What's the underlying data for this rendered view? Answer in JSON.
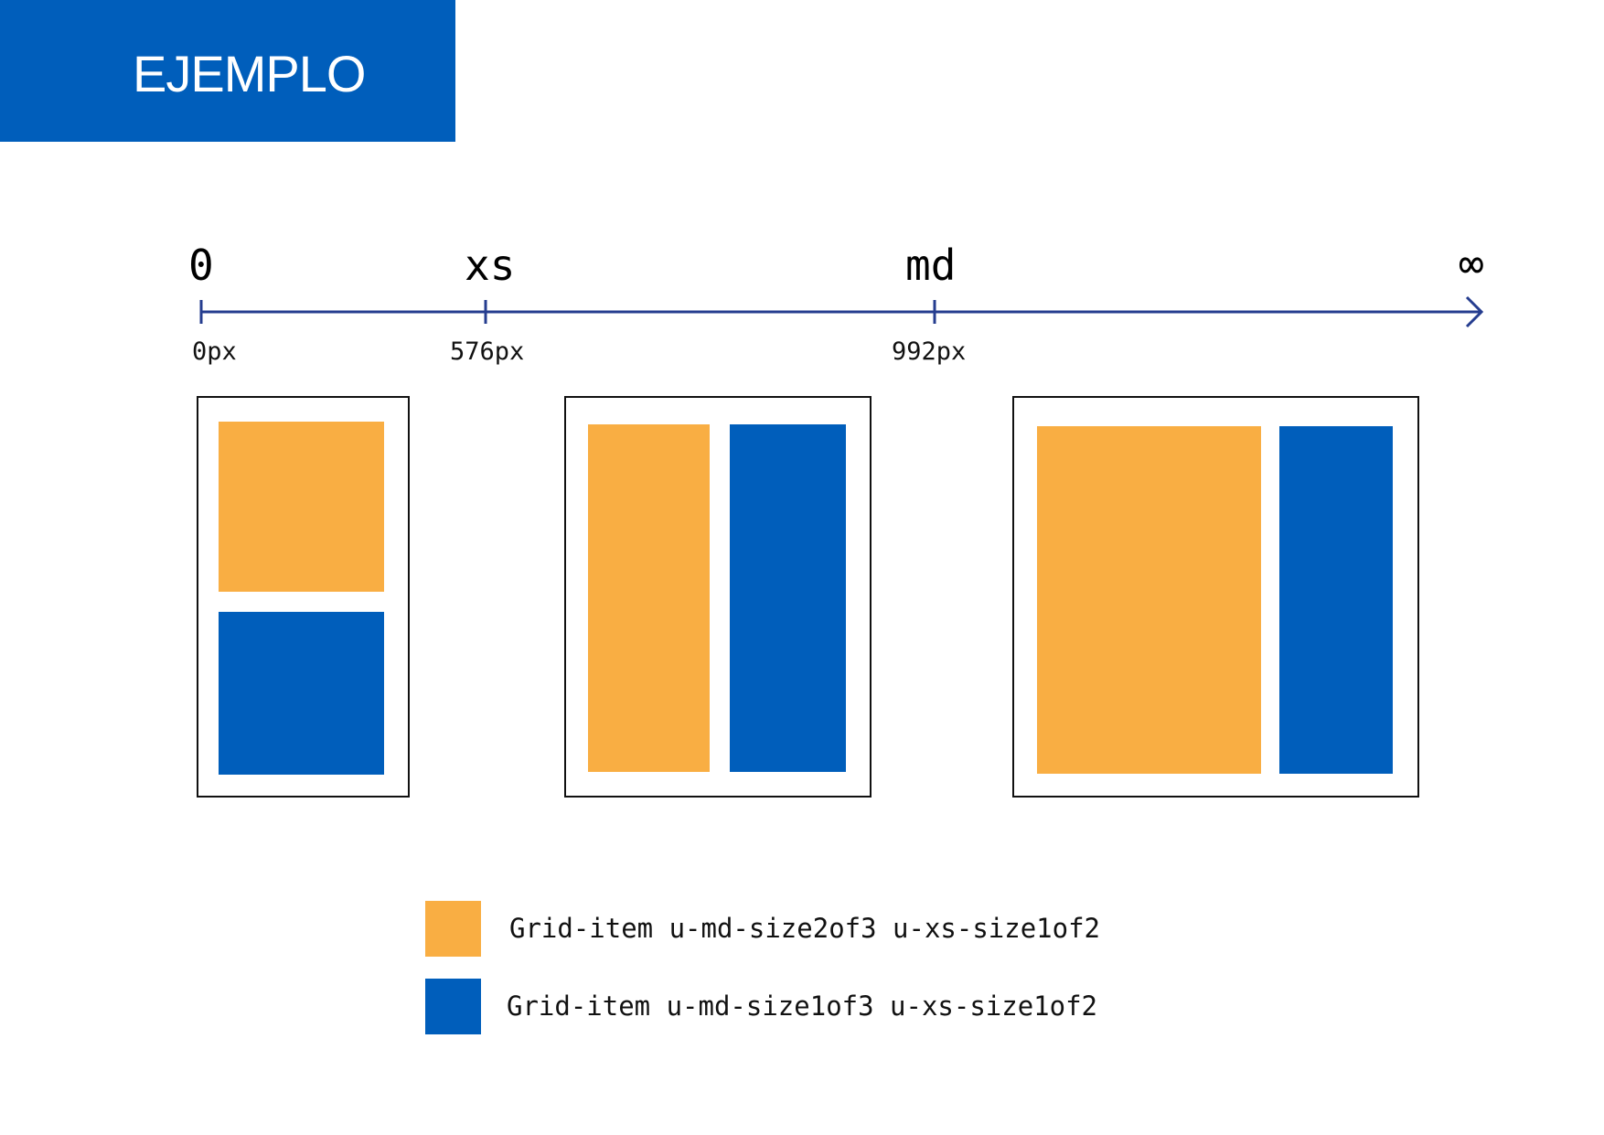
{
  "header": {
    "title": "EJEMPLO"
  },
  "colors": {
    "blue": "#005EBB",
    "orange": "#F9AE43",
    "axis": "#253D8F"
  },
  "axis": {
    "end_label": "∞",
    "breakpoints": [
      {
        "name": "0",
        "px_label": "0px"
      },
      {
        "name": "xs",
        "px_label": "576px"
      },
      {
        "name": "md",
        "px_label": "992px"
      }
    ]
  },
  "examples": [
    {
      "breakpoint": "0",
      "layout": "stacked",
      "items": [
        "orange",
        "blue"
      ]
    },
    {
      "breakpoint": "xs",
      "layout": "half-half",
      "items": [
        "orange",
        "blue"
      ]
    },
    {
      "breakpoint": "md",
      "layout": "two-thirds",
      "items": [
        "orange",
        "blue"
      ]
    }
  ],
  "legend": [
    {
      "color": "orange",
      "label": "Grid-item u-md-size2of3 u-xs-size1of2"
    },
    {
      "color": "blue",
      "label": "Grid-item u-md-size1of3 u-xs-size1of2"
    }
  ]
}
